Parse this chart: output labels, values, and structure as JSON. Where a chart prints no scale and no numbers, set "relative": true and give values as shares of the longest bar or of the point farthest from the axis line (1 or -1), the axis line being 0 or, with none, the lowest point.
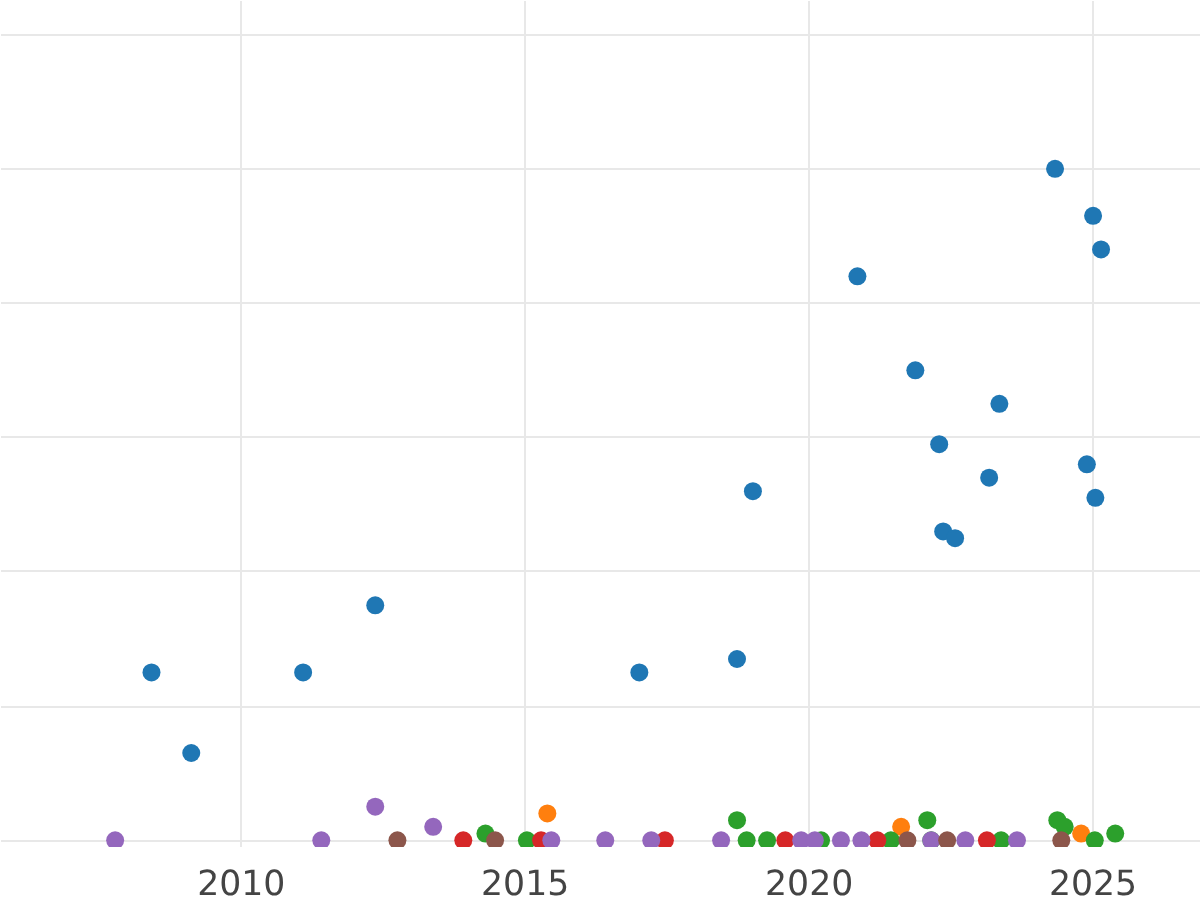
{
  "chart_data": {
    "type": "scatter",
    "relative": true,
    "marker": "circle",
    "grid": true,
    "xlim": [
      2005.77,
      2026.9
    ],
    "xticks": [
      2010,
      2015,
      2020,
      2025
    ],
    "series": [
      {
        "color": "#1f77b4",
        "x": [
          2008.42,
          2009.12,
          2011.09,
          2012.36,
          2017.01,
          2018.73,
          2019.01,
          2020.85,
          2021.87,
          2022.29,
          2022.36,
          2022.57,
          2023.17,
          2023.35,
          2024.33,
          2024.89,
          2025.0,
          2025.04,
          2025.14
        ],
        "values": [
          0.25,
          0.13,
          0.25,
          0.35,
          0.25,
          0.27,
          0.52,
          0.84,
          0.7,
          0.59,
          0.46,
          0.45,
          0.54,
          0.65,
          1.0,
          0.56,
          0.93,
          0.51,
          0.88
        ]
      },
      {
        "color": "#ff7f0e",
        "x": [
          2015.39,
          2021.62,
          2024.79
        ],
        "values": [
          0.04,
          0.02,
          0.01
        ]
      },
      {
        "color": "#2ca02c",
        "x": [
          2014.3,
          2015.03,
          2018.73,
          2018.9,
          2019.26,
          2020.21,
          2021.44,
          2022.08,
          2022.15,
          2023.38,
          2024.37,
          2024.5,
          2025.03,
          2025.39
        ],
        "values": [
          0.01,
          0,
          0.03,
          0,
          0,
          0,
          0,
          0.03,
          0,
          0,
          0.03,
          0.02,
          0,
          0.01
        ]
      },
      {
        "color": "#d62728",
        "x": [
          2013.91,
          2015.28,
          2017.46,
          2019.58,
          2021.2,
          2023.13
        ],
        "values": [
          0,
          0,
          0,
          0,
          0,
          0
        ]
      },
      {
        "color": "#9467bd",
        "x": [
          2007.78,
          2011.41,
          2012.36,
          2013.38,
          2015.46,
          2016.41,
          2017.22,
          2018.45,
          2019.86,
          2020.1,
          2020.56,
          2020.92,
          2022.15,
          2022.75,
          2023.66
        ],
        "values": [
          0,
          0,
          0.05,
          0.02,
          0,
          0,
          0,
          0,
          0,
          0,
          0,
          0,
          0,
          0,
          0
        ]
      },
      {
        "color": "#8c564b",
        "x": [
          2012.75,
          2014.47,
          2021.73,
          2022.43,
          2024.44
        ],
        "values": [
          0,
          0,
          0,
          0,
          0
        ]
      }
    ]
  }
}
